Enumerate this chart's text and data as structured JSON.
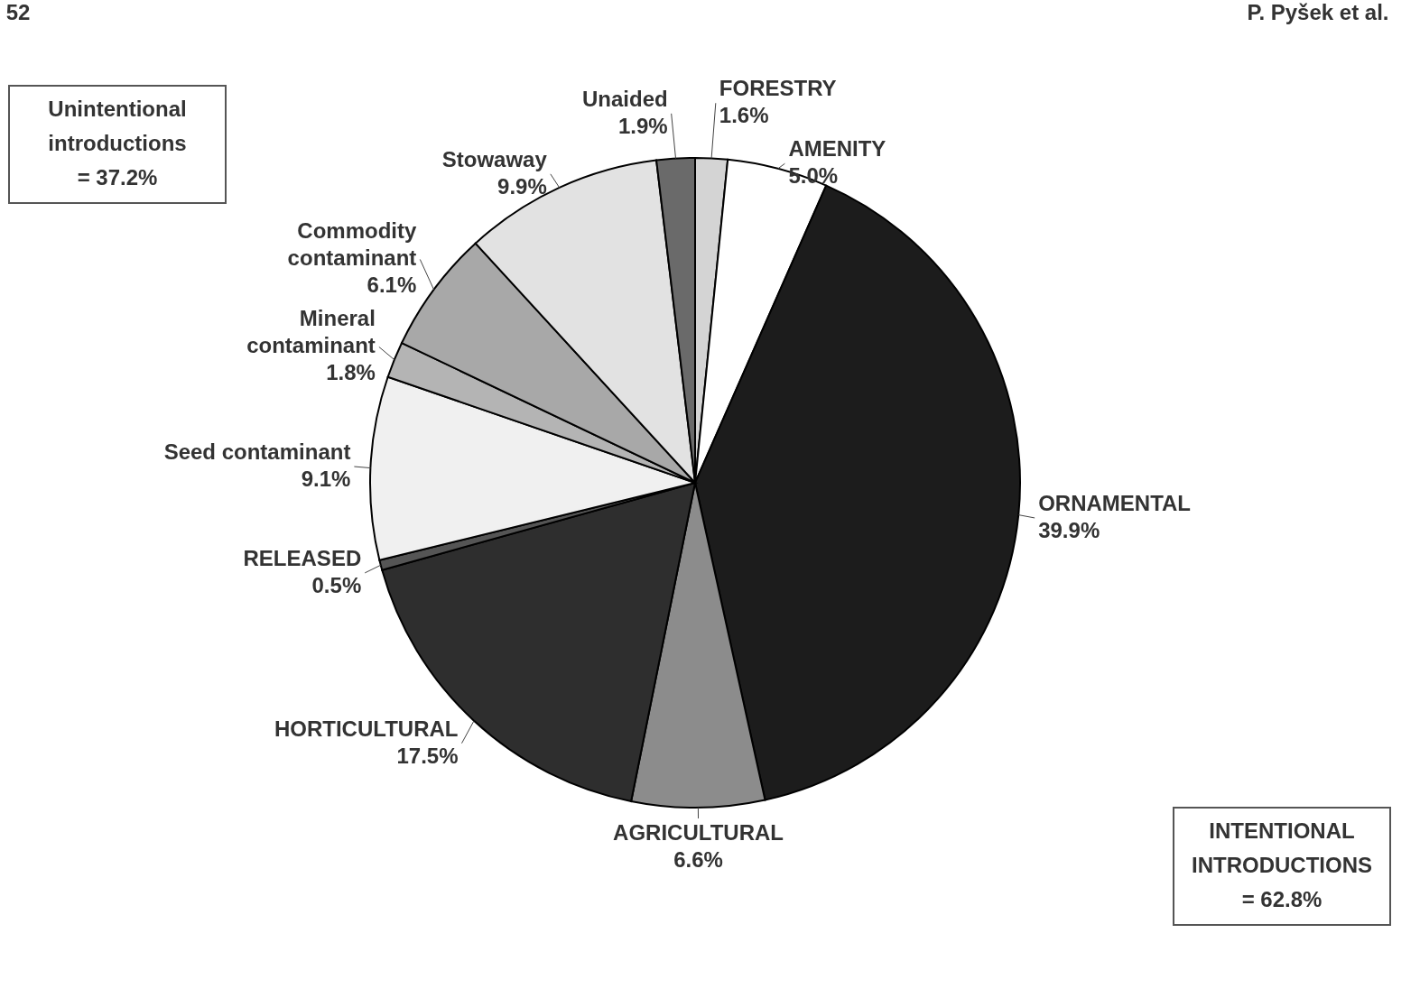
{
  "chart_data": {
    "type": "pie",
    "categories": [
      "FORESTRY",
      "AMENITY",
      "ORNAMENTAL",
      "AGRICULTURAL",
      "HORTICULTURAL",
      "RELEASED",
      "Seed contaminant",
      "Mineral contaminant",
      "Commodity contaminant",
      "Stowaway",
      "Unaided"
    ],
    "values": [
      1.6,
      5.0,
      39.9,
      6.6,
      17.5,
      0.5,
      9.1,
      1.8,
      6.1,
      9.9,
      1.9
    ],
    "colors": [
      "#d4d4d4",
      "#ffffff",
      "#1c1c1c",
      "#8c8c8c",
      "#2e2e2e",
      "#555555",
      "#f0f0f0",
      "#b4b4b4",
      "#a8a8a8",
      "#e2e2e2",
      "#6a6a6a"
    ],
    "value_labels": [
      "1.6%",
      "5.0%",
      "39.9%",
      "6.6%",
      "17.5%",
      "0.5%",
      "9.1%",
      "1.8%",
      "6.1%",
      "9.9%",
      "1.9%"
    ],
    "annotations": [
      "Unintentional introductions = 37.2%",
      "INTENTIONAL INTRODUCTIONS = 62.8%",
      "52",
      "P. Pyšek et al."
    ]
  }
}
